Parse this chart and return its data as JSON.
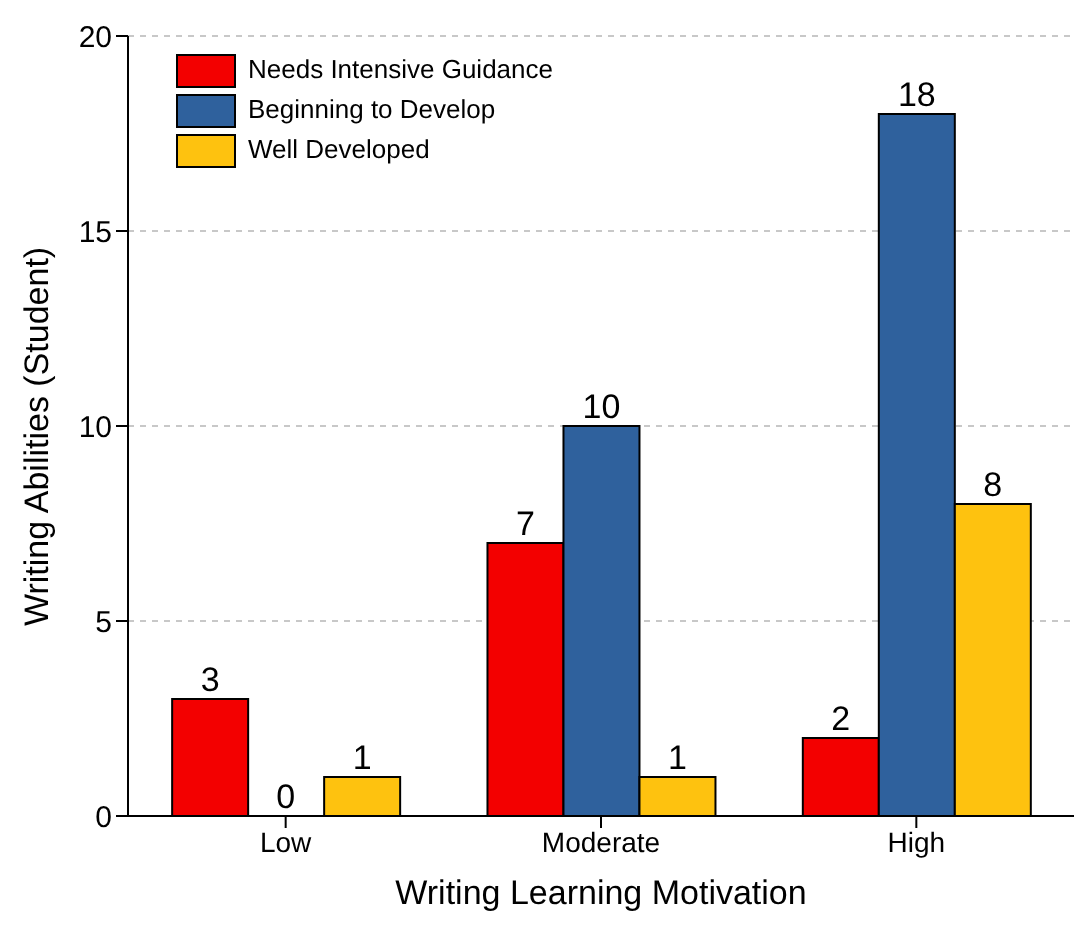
{
  "chart_data": {
    "type": "bar",
    "xlabel": "Writing Learning Motivation",
    "ylabel": "Writing Abilities (Student)",
    "categories": [
      "Low",
      "Moderate",
      "High"
    ],
    "series": [
      {
        "name": "Needs Intensive Guidance",
        "color": "#f30000",
        "values": [
          3,
          7,
          2
        ]
      },
      {
        "name": "Beginning to Develop",
        "color": "#2f619d",
        "values": [
          0,
          10,
          18
        ]
      },
      {
        "name": "Well Developed",
        "color": "#fec20f",
        "values": [
          1,
          1,
          8
        ]
      }
    ],
    "ylim": [
      0,
      20
    ],
    "yticks": [
      0,
      5,
      10,
      15,
      20
    ],
    "grid": "y",
    "legend": "top left",
    "data_labels": true
  }
}
